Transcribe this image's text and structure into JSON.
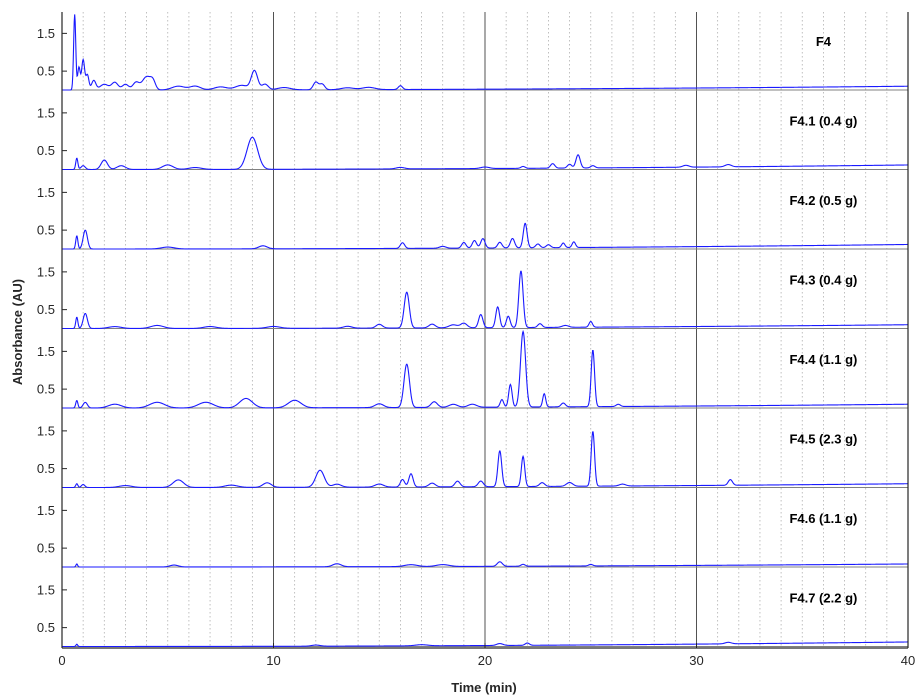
{
  "chart_data": {
    "type": "line",
    "xlabel": "Time (min)",
    "ylabel": "Absorbance (AU)",
    "xlim": [
      0,
      40
    ],
    "ylim": [
      0,
      2.0
    ],
    "x_ticks": [
      0,
      10,
      20,
      30,
      40
    ],
    "y_ticks": [
      0.5,
      1.5
    ],
    "major_grid_x": [
      10,
      20,
      30,
      40
    ],
    "minor_grid_step": 1,
    "colors": {
      "trace": "#1a1aff",
      "baseline": "#808080",
      "grid_major": "#404040",
      "grid_minor": "#b0b0b0"
    },
    "panels": [
      {
        "label": "F4",
        "drift": 0.1,
        "peaks": [
          [
            0.6,
            2.0,
            0.05
          ],
          [
            0.8,
            0.6,
            0.06
          ],
          [
            1.0,
            0.8,
            0.07
          ],
          [
            1.2,
            0.4,
            0.07
          ],
          [
            1.5,
            0.25,
            0.1
          ],
          [
            2.0,
            0.15,
            0.2
          ],
          [
            2.5,
            0.2,
            0.15
          ],
          [
            3.0,
            0.15,
            0.15
          ],
          [
            3.5,
            0.2,
            0.15
          ],
          [
            4.0,
            0.35,
            0.2
          ],
          [
            4.3,
            0.2,
            0.12
          ],
          [
            5.5,
            0.1,
            0.3
          ],
          [
            6.3,
            0.1,
            0.25
          ],
          [
            7.5,
            0.08,
            0.3
          ],
          [
            8.5,
            0.12,
            0.3
          ],
          [
            9.1,
            0.5,
            0.15
          ],
          [
            9.6,
            0.15,
            0.15
          ],
          [
            10.5,
            0.06,
            0.3
          ],
          [
            12.0,
            0.2,
            0.12
          ],
          [
            12.3,
            0.15,
            0.12
          ],
          [
            13.5,
            0.05,
            0.3
          ],
          [
            14.5,
            0.06,
            0.3
          ],
          [
            16.0,
            0.1,
            0.1
          ]
        ]
      },
      {
        "label": "F4.1 (0.4 g)",
        "drift": 0.12,
        "peaks": [
          [
            0.7,
            0.3,
            0.05
          ],
          [
            1.0,
            0.1,
            0.1
          ],
          [
            2.0,
            0.25,
            0.15
          ],
          [
            2.8,
            0.1,
            0.2
          ],
          [
            5.0,
            0.12,
            0.25
          ],
          [
            6.3,
            0.05,
            0.3
          ],
          [
            9.0,
            0.85,
            0.25
          ],
          [
            16.0,
            0.04,
            0.2
          ],
          [
            20.0,
            0.04,
            0.2
          ],
          [
            21.8,
            0.05,
            0.1
          ],
          [
            23.2,
            0.12,
            0.1
          ],
          [
            24.0,
            0.1,
            0.1
          ],
          [
            24.4,
            0.35,
            0.1
          ],
          [
            25.1,
            0.06,
            0.1
          ],
          [
            29.5,
            0.05,
            0.15
          ],
          [
            31.5,
            0.06,
            0.15
          ]
        ]
      },
      {
        "label": "F4.2 (0.5 g)",
        "drift": 0.12,
        "peaks": [
          [
            0.7,
            0.35,
            0.05
          ],
          [
            1.1,
            0.5,
            0.1
          ],
          [
            5.0,
            0.05,
            0.3
          ],
          [
            9.5,
            0.08,
            0.2
          ],
          [
            16.1,
            0.15,
            0.1
          ],
          [
            18.0,
            0.05,
            0.15
          ],
          [
            19.0,
            0.15,
            0.1
          ],
          [
            19.5,
            0.2,
            0.1
          ],
          [
            19.9,
            0.25,
            0.1
          ],
          [
            20.7,
            0.15,
            0.1
          ],
          [
            21.3,
            0.25,
            0.1
          ],
          [
            21.9,
            0.65,
            0.09
          ],
          [
            22.5,
            0.1,
            0.1
          ],
          [
            23.0,
            0.08,
            0.1
          ],
          [
            23.7,
            0.12,
            0.08
          ],
          [
            24.2,
            0.15,
            0.08
          ]
        ]
      },
      {
        "label": "F4.3 (0.4 g)",
        "drift": 0.1,
        "peaks": [
          [
            0.7,
            0.3,
            0.05
          ],
          [
            1.1,
            0.4,
            0.1
          ],
          [
            2.5,
            0.05,
            0.3
          ],
          [
            4.5,
            0.08,
            0.3
          ],
          [
            7.0,
            0.05,
            0.3
          ],
          [
            10.0,
            0.05,
            0.3
          ],
          [
            13.5,
            0.05,
            0.2
          ],
          [
            15.0,
            0.1,
            0.15
          ],
          [
            16.3,
            0.95,
            0.12
          ],
          [
            17.5,
            0.1,
            0.15
          ],
          [
            18.5,
            0.08,
            0.2
          ],
          [
            19.0,
            0.12,
            0.15
          ],
          [
            19.8,
            0.35,
            0.1
          ],
          [
            20.6,
            0.55,
            0.09
          ],
          [
            21.1,
            0.3,
            0.09
          ],
          [
            21.7,
            1.5,
            0.1
          ],
          [
            22.6,
            0.1,
            0.1
          ],
          [
            23.8,
            0.05,
            0.15
          ],
          [
            25.0,
            0.15,
            0.08
          ]
        ]
      },
      {
        "label": "F4.4 (1.1 g)",
        "drift": 0.1,
        "peaks": [
          [
            0.7,
            0.2,
            0.05
          ],
          [
            1.1,
            0.15,
            0.1
          ],
          [
            2.5,
            0.1,
            0.3
          ],
          [
            4.5,
            0.15,
            0.35
          ],
          [
            6.8,
            0.15,
            0.35
          ],
          [
            8.7,
            0.25,
            0.3
          ],
          [
            11.0,
            0.2,
            0.3
          ],
          [
            15.0,
            0.1,
            0.2
          ],
          [
            16.3,
            1.15,
            0.13
          ],
          [
            17.6,
            0.15,
            0.15
          ],
          [
            18.5,
            0.08,
            0.2
          ],
          [
            19.4,
            0.08,
            0.2
          ],
          [
            20.8,
            0.2,
            0.08
          ],
          [
            21.2,
            0.6,
            0.08
          ],
          [
            21.8,
            2.0,
            0.12
          ],
          [
            22.8,
            0.35,
            0.07
          ],
          [
            23.7,
            0.1,
            0.1
          ],
          [
            25.1,
            1.5,
            0.08
          ],
          [
            26.3,
            0.06,
            0.1
          ]
        ]
      },
      {
        "label": "F4.5 (2.3 g)",
        "drift": 0.1,
        "peaks": [
          [
            0.7,
            0.1,
            0.05
          ],
          [
            1.0,
            0.08,
            0.08
          ],
          [
            3.0,
            0.05,
            0.3
          ],
          [
            5.5,
            0.2,
            0.25
          ],
          [
            8.0,
            0.06,
            0.3
          ],
          [
            9.7,
            0.12,
            0.2
          ],
          [
            12.2,
            0.45,
            0.2
          ],
          [
            13.0,
            0.08,
            0.2
          ],
          [
            15.0,
            0.08,
            0.2
          ],
          [
            16.1,
            0.2,
            0.1
          ],
          [
            16.5,
            0.35,
            0.1
          ],
          [
            17.5,
            0.1,
            0.15
          ],
          [
            18.7,
            0.15,
            0.12
          ],
          [
            19.8,
            0.15,
            0.12
          ],
          [
            20.7,
            0.95,
            0.09
          ],
          [
            21.8,
            0.8,
            0.08
          ],
          [
            22.7,
            0.1,
            0.12
          ],
          [
            24.0,
            0.1,
            0.15
          ],
          [
            25.1,
            1.45,
            0.08
          ],
          [
            26.5,
            0.05,
            0.15
          ],
          [
            31.6,
            0.15,
            0.1
          ]
        ]
      },
      {
        "label": "F4.6 (1.1 g)",
        "drift": 0.08,
        "peaks": [
          [
            0.7,
            0.08,
            0.04
          ],
          [
            5.3,
            0.05,
            0.2
          ],
          [
            13.0,
            0.08,
            0.2
          ],
          [
            16.5,
            0.05,
            0.3
          ],
          [
            18.0,
            0.05,
            0.3
          ],
          [
            20.7,
            0.12,
            0.12
          ],
          [
            21.8,
            0.05,
            0.1
          ],
          [
            25.0,
            0.04,
            0.1
          ]
        ]
      },
      {
        "label": "F4.7 (2.2 g)",
        "drift": 0.12,
        "peaks": [
          [
            0.7,
            0.06,
            0.04
          ],
          [
            12.0,
            0.03,
            0.2
          ],
          [
            17.0,
            0.03,
            0.3
          ],
          [
            20.7,
            0.05,
            0.15
          ],
          [
            22.0,
            0.06,
            0.1
          ],
          [
            31.5,
            0.04,
            0.15
          ]
        ]
      }
    ]
  }
}
